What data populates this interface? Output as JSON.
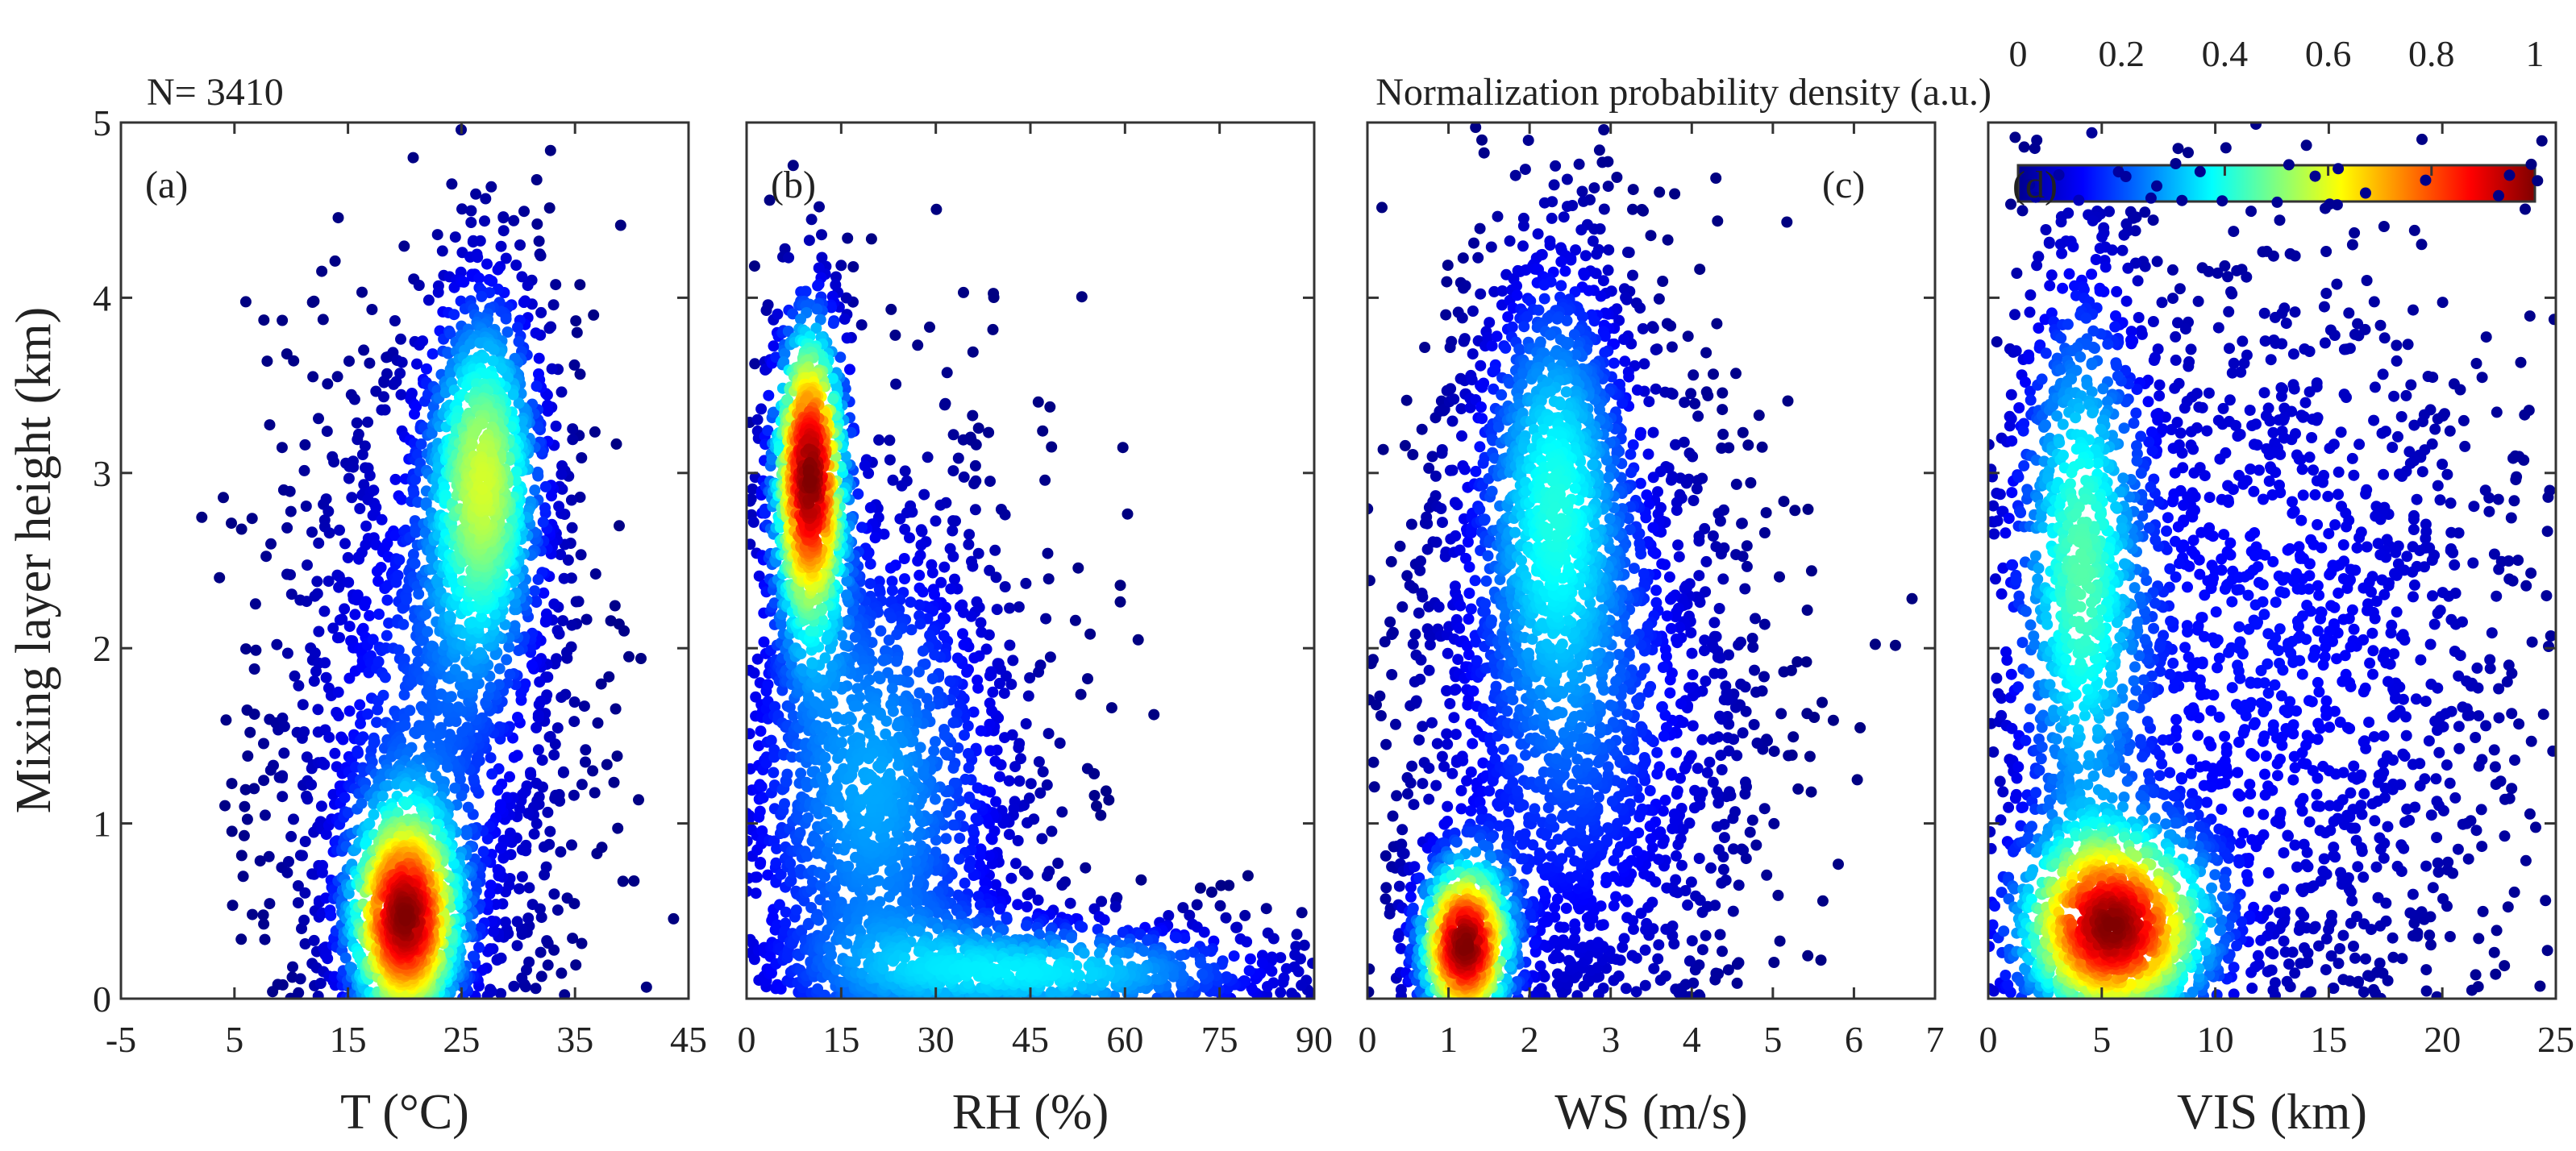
{
  "sample_count_label": "N= 3410",
  "colorbar": {
    "title": "Normalization probability density (a.u.)",
    "ticks": [
      "0",
      "0.2",
      "0.4",
      "0.6",
      "0.8",
      "1"
    ],
    "colormap": "jet",
    "range": [
      0,
      1
    ]
  },
  "chart_data": {
    "type": "scatter",
    "ylabel": "Mixing layer height (km)",
    "ylim": [
      0,
      5
    ],
    "yticks": [
      "0",
      "1",
      "2",
      "3",
      "4",
      "5"
    ],
    "grid": false,
    "color_encoding": "normalized probability density (jet colormap)",
    "n_points": 3410,
    "panels": [
      {
        "panel_label": "(a)",
        "xlabel": "T (°C)",
        "xlim": [
          -5,
          45
        ],
        "xticks": [
          "-5",
          "5",
          "15",
          "25",
          "35",
          "45"
        ],
        "density_modes": [
          {
            "x": 27,
            "y": 3.0,
            "sx": 3.2,
            "sy": 0.65,
            "w": 0.3
          },
          {
            "x": 20,
            "y": 0.45,
            "sx": 3.0,
            "sy": 0.4,
            "w": 0.3
          },
          {
            "x": 22,
            "y": 1.6,
            "sx": 7,
            "sy": 1.1,
            "w": 0.4
          }
        ]
      },
      {
        "panel_label": "(b)",
        "xlabel": "RH (%)",
        "xlim": [
          0,
          90
        ],
        "xticks": [
          "0",
          "15",
          "30",
          "45",
          "60",
          "75",
          "90"
        ],
        "density_modes": [
          {
            "x": 10,
            "y": 3.0,
            "sx": 3.5,
            "sy": 0.55,
            "w": 0.25
          },
          {
            "x": 20,
            "y": 1.2,
            "sx": 14,
            "sy": 1.0,
            "w": 0.55
          },
          {
            "x": 50,
            "y": 0.15,
            "sx": 22,
            "sy": 0.2,
            "w": 0.2
          }
        ]
      },
      {
        "panel_label": "(c)",
        "xlabel": "WS (m/s)",
        "xlim": [
          0,
          7
        ],
        "xticks": [
          "0",
          "1",
          "2",
          "3",
          "4",
          "5",
          "6",
          "7"
        ],
        "density_modes": [
          {
            "x": 1.2,
            "y": 0.3,
            "sx": 0.35,
            "sy": 0.3,
            "w": 0.2
          },
          {
            "x": 2.3,
            "y": 3.0,
            "sx": 0.6,
            "sy": 0.8,
            "w": 0.3
          },
          {
            "x": 2.6,
            "y": 1.6,
            "sx": 1.2,
            "sy": 1.1,
            "w": 0.5
          }
        ]
      },
      {
        "panel_label": "(d)",
        "xlabel": "VIS (km)",
        "xlim": [
          0,
          25
        ],
        "xticks": [
          "0",
          "5",
          "10",
          "15",
          "20",
          "25"
        ],
        "density_modes": [
          {
            "x": 5.5,
            "y": 0.4,
            "sx": 2.6,
            "sy": 0.35,
            "w": 0.3
          },
          {
            "x": 4,
            "y": 2.5,
            "sx": 1.8,
            "sy": 1.0,
            "w": 0.25
          },
          {
            "x": 12,
            "y": 2.0,
            "sx": 7,
            "sy": 1.3,
            "w": 0.45
          }
        ]
      }
    ]
  }
}
